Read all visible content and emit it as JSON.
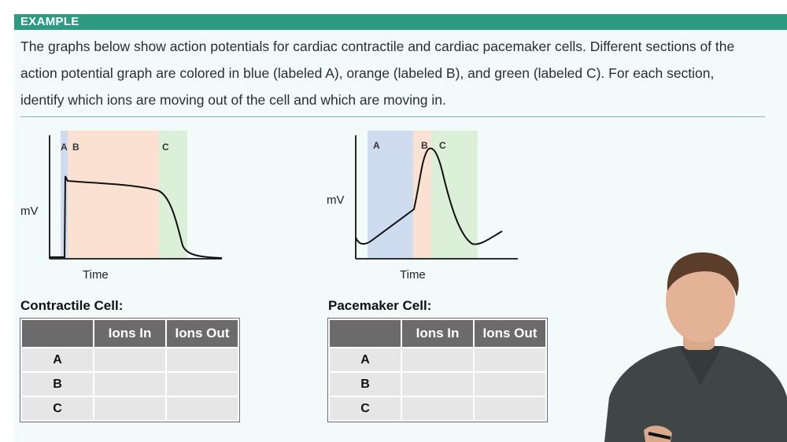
{
  "banner": {
    "label": "EXAMPLE"
  },
  "instructions": "The graphs below show action potentials for cardiac contractile and cardiac pacemaker cells. Different sections of the action potential graph are colored in blue (labeled A), orange (labeled B), and green (labeled C). For each section, identify which ions are moving out of the cell and which are moving in.",
  "colors": {
    "banner": "#2e9a82",
    "blue": "#cfdcef",
    "orange": "#fbe1d2",
    "green": "#dcefd8"
  },
  "contractile_graph": {
    "regions": [
      "A",
      "B",
      "C"
    ],
    "ylabel": "mV",
    "xlabel": "Time"
  },
  "pacemaker_graph": {
    "regions": [
      "A",
      "B",
      "C"
    ],
    "ylabel": "mV",
    "xlabel": "Time"
  },
  "contractile_table": {
    "title": "Contractile Cell:",
    "headers": [
      "",
      "Ions In",
      "Ions Out"
    ],
    "rows": [
      "A",
      "B",
      "C"
    ]
  },
  "pacemaker_table": {
    "title": "Pacemaker Cell:",
    "headers": [
      "",
      "Ions In",
      "Ions Out"
    ],
    "rows": [
      "A",
      "B",
      "C"
    ]
  }
}
